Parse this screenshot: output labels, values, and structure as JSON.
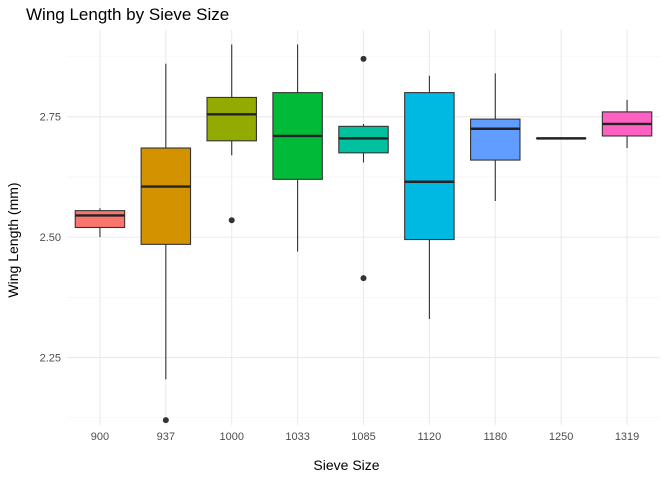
{
  "chart_data": {
    "type": "boxplot",
    "title": "Wing Length by Sieve Size",
    "xlabel": "Sieve Size",
    "ylabel": "Wing Length (mm)",
    "ylim": [
      2.11,
      2.93
    ],
    "y_ticks": [
      2.25,
      2.5,
      2.75
    ],
    "y_tick_labels": [
      "2.25",
      "2.50",
      "2.75"
    ],
    "grid": true,
    "legend": "none",
    "categories": [
      "900",
      "937",
      "1000",
      "1033",
      "1085",
      "1120",
      "1180",
      "1250",
      "1319"
    ],
    "colors": [
      "#F8766D",
      "#D39200",
      "#93AA00",
      "#00BA38",
      "#00C19F",
      "#00B9E3",
      "#619CFF",
      "#DB72FB",
      "#FF61C3"
    ],
    "boxes": [
      {
        "category": "900",
        "whisker_low": 2.5,
        "q1": 2.52,
        "median": 2.545,
        "q3": 2.555,
        "whisker_high": 2.56,
        "outliers": []
      },
      {
        "category": "937",
        "whisker_low": 2.205,
        "q1": 2.485,
        "median": 2.605,
        "q3": 2.685,
        "whisker_high": 2.86,
        "outliers": [
          2.12
        ]
      },
      {
        "category": "1000",
        "whisker_low": 2.67,
        "q1": 2.7,
        "median": 2.755,
        "q3": 2.79,
        "whisker_high": 2.9,
        "outliers": [
          2.535
        ]
      },
      {
        "category": "1033",
        "whisker_low": 2.47,
        "q1": 2.62,
        "median": 2.71,
        "q3": 2.8,
        "whisker_high": 2.9,
        "outliers": []
      },
      {
        "category": "1085",
        "whisker_low": 2.655,
        "q1": 2.675,
        "median": 2.705,
        "q3": 2.73,
        "whisker_high": 2.735,
        "outliers": [
          2.87,
          2.415
        ]
      },
      {
        "category": "1120",
        "whisker_low": 2.33,
        "q1": 2.495,
        "median": 2.615,
        "q3": 2.8,
        "whisker_high": 2.835,
        "outliers": []
      },
      {
        "category": "1180",
        "whisker_low": 2.575,
        "q1": 2.66,
        "median": 2.725,
        "q3": 2.745,
        "whisker_high": 2.84,
        "outliers": []
      },
      {
        "category": "1250",
        "whisker_low": 2.705,
        "q1": 2.705,
        "median": 2.705,
        "q3": 2.705,
        "whisker_high": 2.705,
        "outliers": []
      },
      {
        "category": "1319",
        "whisker_low": 2.685,
        "q1": 2.71,
        "median": 2.735,
        "q3": 2.76,
        "whisker_high": 2.785,
        "outliers": []
      }
    ]
  }
}
